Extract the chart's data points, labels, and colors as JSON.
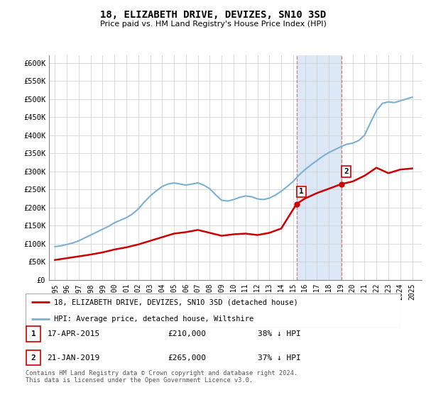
{
  "title": "18, ELIZABETH DRIVE, DEVIZES, SN10 3SD",
  "subtitle": "Price paid vs. HM Land Registry's House Price Index (HPI)",
  "ylim": [
    0,
    620000
  ],
  "xlim": [
    1994.5,
    2025.8
  ],
  "yticks": [
    0,
    50000,
    100000,
    150000,
    200000,
    250000,
    300000,
    350000,
    400000,
    450000,
    500000,
    550000,
    600000
  ],
  "ytick_labels": [
    "£0",
    "£50K",
    "£100K",
    "£150K",
    "£200K",
    "£250K",
    "£300K",
    "£350K",
    "£400K",
    "£450K",
    "£500K",
    "£550K",
    "£600K"
  ],
  "sale1_date": 2015.29,
  "sale1_price": 210000,
  "sale1_label": "1",
  "sale2_date": 2019.05,
  "sale2_price": 265000,
  "sale2_label": "2",
  "legend_line1": "18, ELIZABETH DRIVE, DEVIZES, SN10 3SD (detached house)",
  "legend_line2": "HPI: Average price, detached house, Wiltshire",
  "footer": "Contains HM Land Registry data © Crown copyright and database right 2024.\nThis data is licensed under the Open Government Licence v3.0.",
  "red_color": "#cc0000",
  "blue_color": "#7bafd4",
  "shade_color": "#dce8f5",
  "hpi_years": [
    1995.0,
    1995.5,
    1996.0,
    1996.5,
    1997.0,
    1997.5,
    1998.0,
    1998.5,
    1999.0,
    1999.5,
    2000.0,
    2000.5,
    2001.0,
    2001.5,
    2002.0,
    2002.5,
    2003.0,
    2003.5,
    2004.0,
    2004.5,
    2005.0,
    2005.5,
    2006.0,
    2006.5,
    2007.0,
    2007.5,
    2008.0,
    2008.5,
    2009.0,
    2009.5,
    2010.0,
    2010.5,
    2011.0,
    2011.5,
    2012.0,
    2012.5,
    2013.0,
    2013.5,
    2014.0,
    2014.5,
    2015.0,
    2015.5,
    2016.0,
    2016.5,
    2017.0,
    2017.5,
    2018.0,
    2018.5,
    2019.0,
    2019.5,
    2020.0,
    2020.5,
    2021.0,
    2021.5,
    2022.0,
    2022.5,
    2023.0,
    2023.5,
    2024.0,
    2024.5,
    2025.0
  ],
  "hpi_values": [
    92000,
    94000,
    98000,
    102000,
    108000,
    116000,
    124000,
    132000,
    140000,
    148000,
    158000,
    165000,
    172000,
    182000,
    196000,
    215000,
    232000,
    246000,
    258000,
    265000,
    268000,
    265000,
    262000,
    265000,
    268000,
    262000,
    252000,
    235000,
    220000,
    218000,
    222000,
    228000,
    232000,
    230000,
    224000,
    222000,
    226000,
    234000,
    245000,
    258000,
    272000,
    290000,
    305000,
    318000,
    330000,
    342000,
    352000,
    360000,
    368000,
    375000,
    378000,
    385000,
    400000,
    435000,
    468000,
    488000,
    492000,
    490000,
    495000,
    500000,
    505000
  ],
  "price_years": [
    1995.0,
    1996.0,
    1997.0,
    1998.0,
    1999.0,
    2000.0,
    2001.0,
    2002.0,
    2003.0,
    2004.0,
    2005.0,
    2006.0,
    2007.0,
    2008.0,
    2009.0,
    2010.0,
    2011.0,
    2012.0,
    2013.0,
    2014.0,
    2015.29,
    2016.0,
    2017.0,
    2018.0,
    2019.05,
    2020.0,
    2021.0,
    2022.0,
    2023.0,
    2024.0,
    2025.0
  ],
  "price_values": [
    55000,
    60000,
    65000,
    70000,
    76000,
    84000,
    90000,
    98000,
    108000,
    118000,
    128000,
    132000,
    138000,
    130000,
    122000,
    126000,
    128000,
    124000,
    130000,
    142000,
    210000,
    225000,
    240000,
    252000,
    265000,
    272000,
    288000,
    310000,
    295000,
    305000,
    308000
  ]
}
